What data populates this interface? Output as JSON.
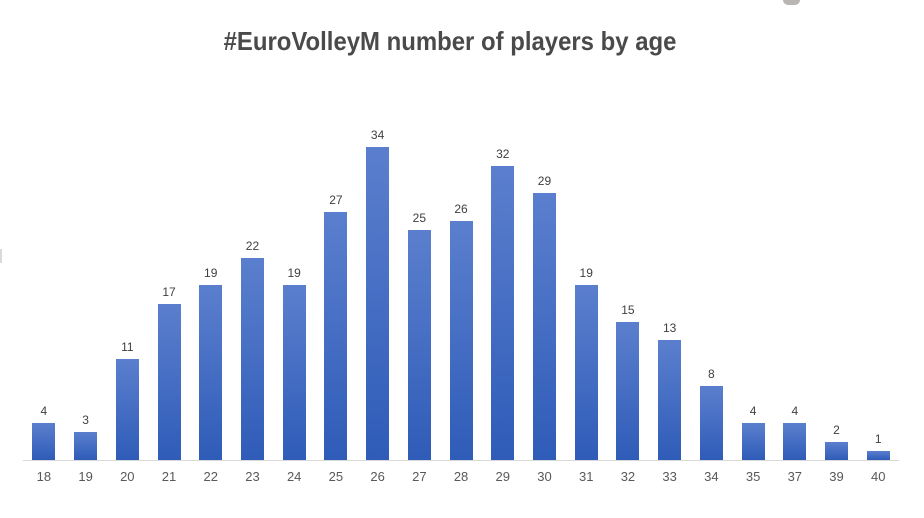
{
  "chart_data": {
    "type": "bar",
    "title": "#EuroVolleyM number of players by age",
    "categories": [
      "18",
      "19",
      "20",
      "21",
      "22",
      "23",
      "24",
      "25",
      "26",
      "27",
      "28",
      "29",
      "30",
      "31",
      "32",
      "33",
      "34",
      "35",
      "37",
      "39",
      "40"
    ],
    "values": [
      4,
      3,
      11,
      17,
      19,
      22,
      19,
      27,
      34,
      25,
      26,
      32,
      29,
      19,
      15,
      13,
      8,
      4,
      4,
      2,
      1
    ],
    "series_name": "number of players",
    "xlabel": "",
    "ylabel": "",
    "ylim": [
      0,
      35
    ],
    "gridlines": false,
    "legend": "none",
    "data_labels_shown": true,
    "colors": {
      "bar_gradient_top": "#5b7fce",
      "bar_gradient_bottom": "#2f5cb8",
      "title_text": "#4a4a4a",
      "axis_line": "#d9d9d9",
      "tick_label": "#595959",
      "data_label": "#404040",
      "background": "#ffffff"
    }
  }
}
